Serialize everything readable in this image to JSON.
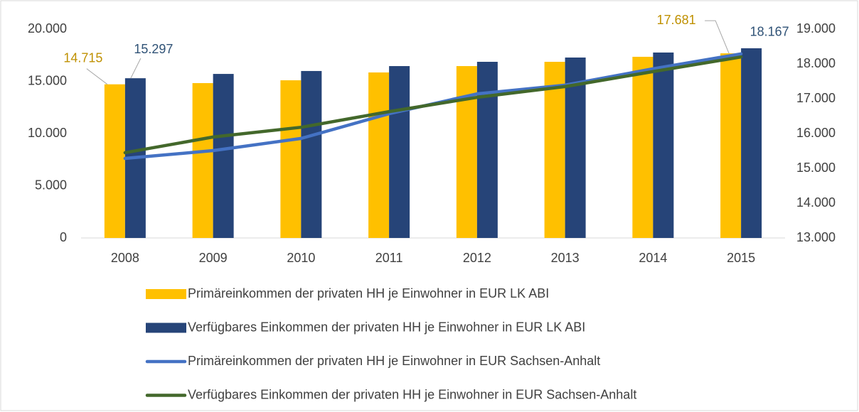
{
  "chart_data": {
    "type": "bar",
    "categories": [
      "2008",
      "2009",
      "2010",
      "2011",
      "2012",
      "2013",
      "2014",
      "2015"
    ],
    "series": [
      {
        "name": "Primäreinkommen der privaten HH je Einwohner in EUR LK ABI",
        "type": "bar",
        "color": "#ffc000",
        "label_color": "#bf9000",
        "values": [
          14715,
          14830,
          15100,
          15850,
          16460,
          16870,
          17350,
          17681
        ],
        "value_labels": [
          "14.715",
          null,
          null,
          null,
          null,
          null,
          null,
          "17.681"
        ]
      },
      {
        "name": "Verfügbares Einkommen der privaten HH je Einwohner in EUR LK ABI",
        "type": "bar",
        "color": "#264478",
        "label_color": "#2f5276",
        "values": [
          15297,
          15710,
          15990,
          16460,
          16870,
          17280,
          17760,
          18167
        ],
        "value_labels": [
          "15.297",
          null,
          null,
          null,
          null,
          null,
          null,
          "18.167"
        ]
      },
      {
        "name": "Primäreinkommen der privaten HH je Einwohner in EUR Sachsen-Anhalt",
        "type": "line",
        "axis": "y2",
        "color": "#4472c4",
        "values": [
          15285,
          15510,
          15860,
          16570,
          17140,
          17390,
          17860,
          18290
        ]
      },
      {
        "name": "Verfügbares Einkommen der privaten HH je Einwohner in EUR Sachsen-Anhalt",
        "type": "line",
        "axis": "y2",
        "color": "#43682b",
        "values": [
          15450,
          15900,
          16180,
          16630,
          17040,
          17350,
          17780,
          18200
        ]
      }
    ],
    "ylim": [
      0,
      20000
    ],
    "yticks": [
      0,
      {
        "value": 5000,
        "label": "5.000"
      },
      {
        "value": 10000,
        "label": "10.000"
      },
      {
        "value": 15000,
        "label": "15.000"
      },
      {
        "value": 20000,
        "label": "20.000"
      }
    ],
    "y2lim": [
      13000,
      19000
    ],
    "y2ticks": [
      {
        "value": 13000,
        "label": "13.000"
      },
      {
        "value": 14000,
        "label": "14.000"
      },
      {
        "value": 15000,
        "label": "15.000"
      },
      {
        "value": 16000,
        "label": "16.000"
      },
      {
        "value": 17000,
        "label": "17.000"
      },
      {
        "value": 18000,
        "label": "18.000"
      },
      {
        "value": 19000,
        "label": "19.000"
      }
    ],
    "grid": false,
    "legend": "bottom"
  }
}
